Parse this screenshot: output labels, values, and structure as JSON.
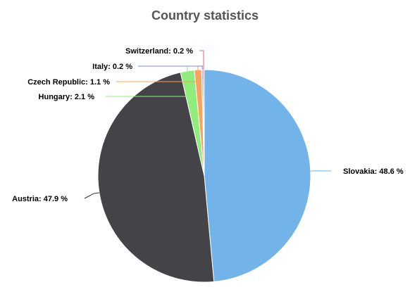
{
  "chart_data": {
    "type": "pie",
    "title": "Country statistics",
    "slices": [
      {
        "name": "Slovakia",
        "value": 48.6,
        "label": "Slovakia: 48.6 %",
        "color": "#72b3e9"
      },
      {
        "name": "Austria",
        "value": 47.9,
        "label": "Austria: 47.9 %",
        "color": "#434348"
      },
      {
        "name": "Hungary",
        "value": 2.1,
        "label": "Hungary: 2.1 %",
        "color": "#90ed7d"
      },
      {
        "name": "Czech Republic",
        "value": 1.1,
        "label": "Czech Republic: 1.1 %",
        "color": "#f7a35c"
      },
      {
        "name": "Italy",
        "value": 0.2,
        "label": "Italy: 0.2 %",
        "color": "#8085e9"
      },
      {
        "name": "Switzerland",
        "value": 0.2,
        "label": "Switzerland: 0.2 %",
        "color": "#f15c80"
      }
    ]
  }
}
